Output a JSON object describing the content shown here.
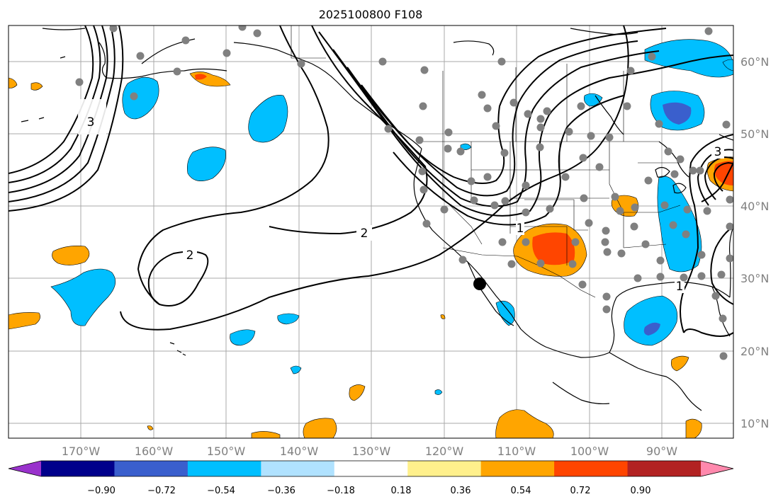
{
  "title": "2025100800 F108",
  "lon_ticks": [
    "170°W",
    "160°W",
    "150°W",
    "140°W",
    "130°W",
    "120°W",
    "110°W",
    "100°W",
    "90°W"
  ],
  "lat_ticks": [
    "60°N",
    "50°N",
    "40°N",
    "30°N",
    "20°N",
    "10°N"
  ],
  "colorbar": {
    "colors": [
      "#9932cc",
      "#00008b",
      "#3a5fcd",
      "#00bfff",
      "#b0e2ff",
      "#ffffff",
      "#fff08c",
      "#ffa500",
      "#ff4500",
      "#b22222",
      "#ff89ad"
    ],
    "tick_labels": [
      "−0.90",
      "−0.72",
      "−0.54",
      "−0.36",
      "−0.18",
      "0.18",
      "0.36",
      "0.54",
      "0.72",
      "0.90"
    ],
    "tick_values": [
      -0.9,
      -0.72,
      -0.54,
      -0.36,
      -0.18,
      0.18,
      0.36,
      0.54,
      0.72,
      0.9
    ]
  },
  "contour_labels": [
    "2",
    "2",
    "3",
    "3",
    "1",
    "1"
  ],
  "station_marker_color": "#808080",
  "highlight_marker_color": "#000000"
}
